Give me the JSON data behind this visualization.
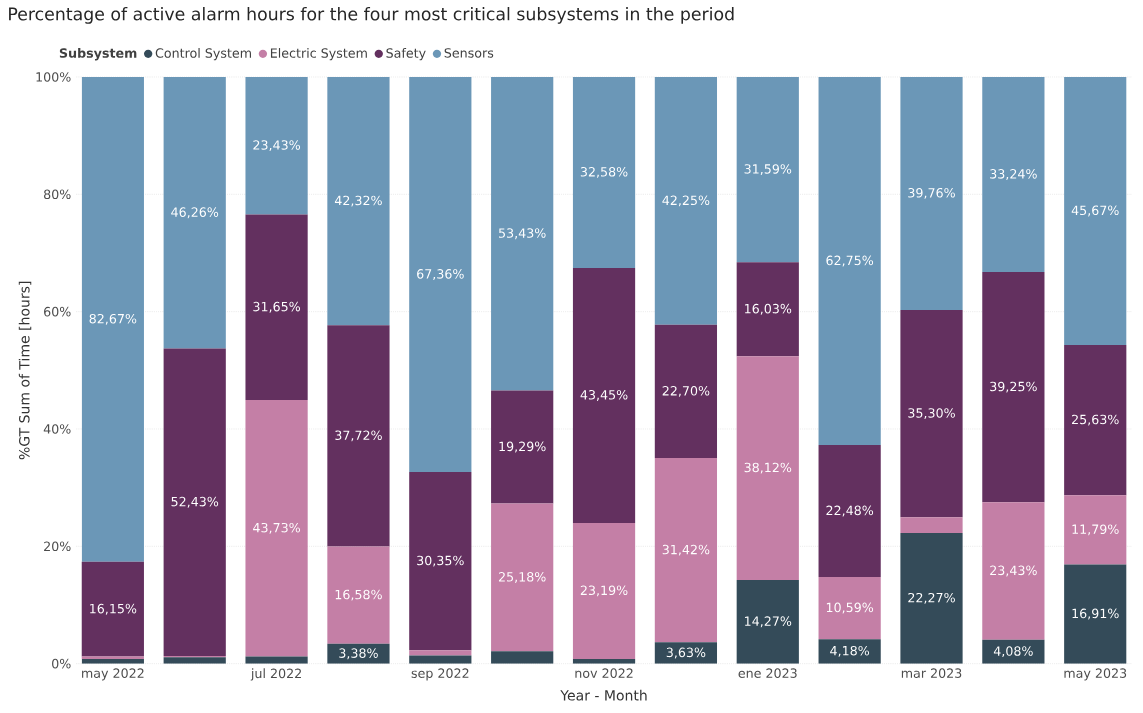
{
  "chart_data": {
    "type": "bar",
    "stacked": true,
    "title": "Percentage of active alarm hours for the four most critical subsystems in the period",
    "xlabel": "Year - Month",
    "ylabel": "%GT Sum of Time [hours]",
    "legend_title": "Subsystem",
    "legend": "top left",
    "grid": "y",
    "categories": [
      "may 2022",
      null,
      "jul 2022",
      null,
      "sep 2022",
      null,
      "nov 2022",
      null,
      "ene 2023",
      null,
      "mar 2023",
      null,
      "may 2023"
    ],
    "ylim": [
      0,
      100
    ],
    "yticks": [
      {
        "value": 0,
        "label": "0%"
      },
      {
        "value": 20,
        "label": "20%"
      },
      {
        "value": 40,
        "label": "40%"
      },
      {
        "value": 60,
        "label": "60%"
      },
      {
        "value": 80,
        "label": "80%"
      },
      {
        "value": 100,
        "label": "100%"
      }
    ],
    "series": [
      {
        "name": "Control System",
        "color": "#344b59",
        "values": [
          0.8,
          1.1,
          1.2,
          3.38,
          1.4,
          2.1,
          0.8,
          3.63,
          14.27,
          4.18,
          22.27,
          4.08,
          16.91
        ],
        "value_labels": [
          null,
          null,
          null,
          "3,38%",
          null,
          null,
          null,
          "3,63%",
          "14,27%",
          "4,18%",
          "22,27%",
          "4,08%",
          "16,91%"
        ]
      },
      {
        "name": "Electric System",
        "color": "#c47fa6",
        "values": [
          0.4,
          0.2,
          43.73,
          16.58,
          0.9,
          25.18,
          23.19,
          31.42,
          38.12,
          10.59,
          2.7,
          23.43,
          11.79
        ],
        "value_labels": [
          null,
          null,
          "43,73%",
          "16,58%",
          null,
          "25,18%",
          "23,19%",
          "31,42%",
          "38,12%",
          "10,59%",
          null,
          "23,43%",
          "11,79%"
        ]
      },
      {
        "name": "Safety",
        "color": "#63305f",
        "values": [
          16.15,
          52.43,
          31.65,
          37.72,
          30.35,
          19.29,
          43.45,
          22.7,
          16.03,
          22.48,
          35.3,
          39.25,
          25.63
        ],
        "value_labels": [
          "16,15%",
          "52,43%",
          "31,65%",
          "37,72%",
          "30,35%",
          "19,29%",
          "43,45%",
          "22,70%",
          "16,03%",
          "22,48%",
          "35,30%",
          "39,25%",
          "25,63%"
        ]
      },
      {
        "name": "Sensors",
        "color": "#6b97b7",
        "values": [
          82.67,
          46.26,
          23.43,
          42.32,
          67.36,
          53.43,
          32.58,
          42.25,
          31.59,
          62.75,
          39.76,
          33.24,
          45.67
        ],
        "value_labels": [
          "82,67%",
          "46,26%",
          "23,43%",
          "42,32%",
          "67,36%",
          "53,43%",
          "32,58%",
          "42,25%",
          "31,59%",
          "62,75%",
          "39,76%",
          "33,24%",
          "45,67%"
        ]
      }
    ]
  }
}
